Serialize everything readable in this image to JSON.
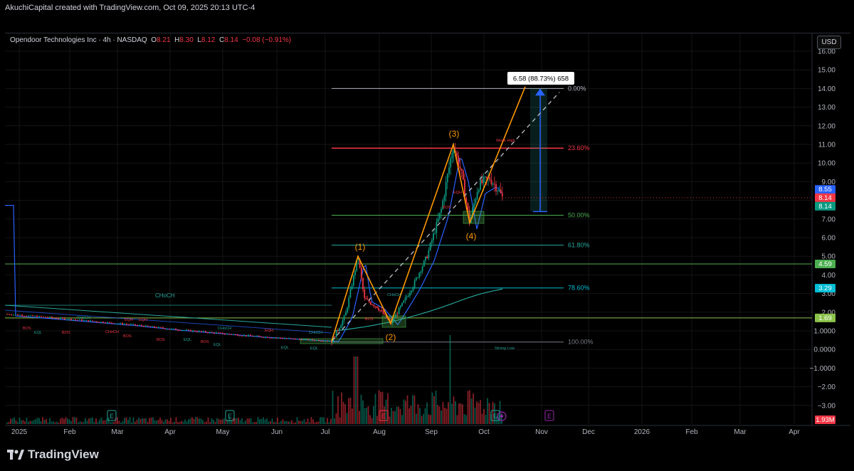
{
  "header": {
    "attribution": "AkuchiCapital created with TradingView.com, Oct 09, 2025 20:13 UTC-4"
  },
  "legend": {
    "symbol": "Opendoor Technologies Inc · 4h · NASDAQ",
    "o_label": "O",
    "o_value": "8.21",
    "h_label": "H",
    "h_value": "8.30",
    "l_label": "L",
    "l_value": "8.12",
    "c_label": "C",
    "c_value": "8.14",
    "change": "−0.08 (−0.91%)"
  },
  "currency_button": "USD",
  "footer": {
    "brand": "TradingView"
  },
  "chart_data": {
    "type": "candlestick",
    "y_axis": {
      "ticks": [
        "16.00",
        "15.00",
        "14.00",
        "13.00",
        "12.00",
        "11.00",
        "10.00",
        "9.00",
        "8.00",
        "7.00",
        "6.00",
        "5.00",
        "4.00",
        "3.00",
        "2.00",
        "1.0000",
        "0.0000",
        "−1.0000",
        "−2.00",
        "−3.00"
      ]
    },
    "x_axis": {
      "ticks": [
        "2025",
        "Feb",
        "Mar",
        "Apr",
        "May",
        "Jun",
        "Jul",
        "Aug",
        "Sep",
        "Oct",
        "Nov",
        "Dec",
        "2026",
        "Feb",
        "Mar",
        "Apr"
      ]
    },
    "price_badges": [
      {
        "value": "8.55",
        "color": "#2962ff"
      },
      {
        "value": "8.14",
        "color": "#f23645"
      },
      {
        "value": "8.14",
        "color": "#089981"
      },
      {
        "value": "4.59",
        "color": "#4caf50"
      },
      {
        "value": "3.29",
        "color": "#00bcd4"
      },
      {
        "value": "1.69",
        "color": "#8bc34a"
      },
      {
        "value": "1.93M",
        "color": "#f23645"
      }
    ],
    "fib_levels": [
      {
        "label": "0.00%",
        "price": 14.0,
        "color": "#b2b5be"
      },
      {
        "label": "23.60%",
        "price": 10.8,
        "color": "#f23645"
      },
      {
        "label": "50.00%",
        "price": 7.2,
        "color": "#4caf50"
      },
      {
        "label": "61.80%",
        "price": 5.6,
        "color": "#26a69a"
      },
      {
        "label": "78.60%",
        "price": 3.3,
        "color": "#00bcd4"
      },
      {
        "label": "100.00%",
        "price": 0.4,
        "color": "#787b86"
      }
    ],
    "waves": [
      {
        "label": "(1)",
        "price": 5.0
      },
      {
        "label": "(2)",
        "price": 1.4
      },
      {
        "label": "(3)",
        "price": 11.0
      },
      {
        "label": "(4)",
        "price": 6.8
      }
    ],
    "horizontal_lines": [
      {
        "price": 4.59,
        "color": "#4caf50"
      },
      {
        "price": 1.69,
        "color": "#8bc34a"
      }
    ],
    "measure": {
      "label": "6.58 (88.73%) 658",
      "from": 7.4,
      "to": 14.0
    },
    "annotations": [
      "CHoCH",
      "CHoCH",
      "CHoCH",
      "CHoCH",
      "CHoCH",
      "CHoCH",
      "BOS",
      "BOS",
      "BOS",
      "BOS",
      "BOS",
      "BOS",
      "BOS",
      "EQL",
      "EQL",
      "EQL",
      "EQL",
      "EQL",
      "EQH",
      "EQH",
      "EQH",
      "EQH",
      "Weak High",
      "Strong Low"
    ],
    "event_markers": [
      {
        "label": "E",
        "color": "#26a69a"
      },
      {
        "label": "E",
        "color": "#26a69a"
      },
      {
        "label": "E",
        "color": "#f23645"
      },
      {
        "label": "E",
        "color": "#26a69a"
      },
      {
        "label": "E",
        "color": "#9c27b0"
      }
    ],
    "grid": true
  }
}
